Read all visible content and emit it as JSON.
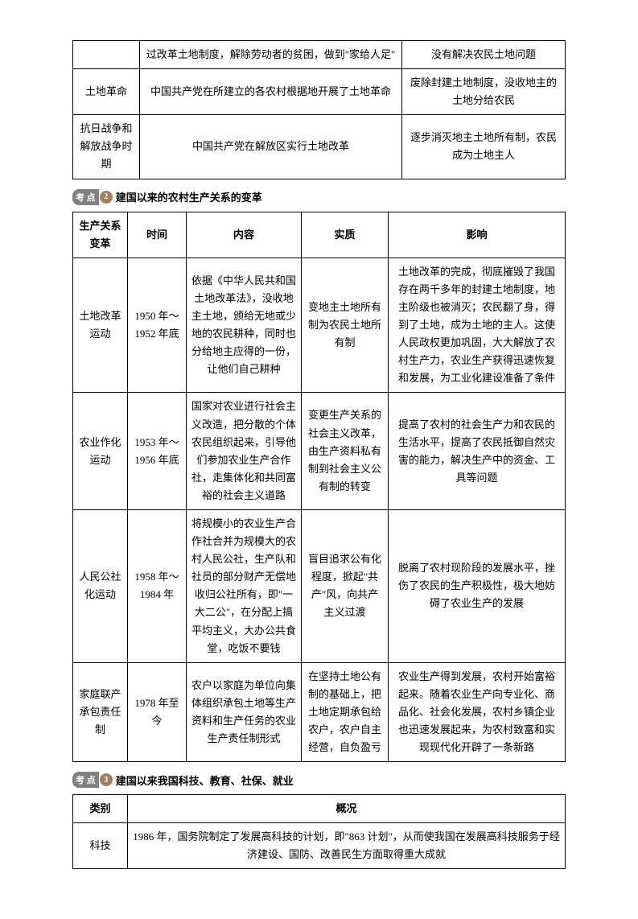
{
  "table1": {
    "rows": [
      {
        "c1": "",
        "c2": "过改革土地制度，解除劳动者的贫困，做到\"家给人足\"",
        "c3": "没有解决农民土地问题"
      },
      {
        "c1": "土地革命",
        "c2": "中国共产党在所建立的各农村根据地开展了土地革命",
        "c3": "废除封建土地制度，没收地主的土地分给农民"
      },
      {
        "c1": "抗日战争和解放战争时期",
        "c2": "中国共产党在解放区实行土地改革",
        "c3": "逐步消灭地主土地所有制，农民成为土地主人"
      }
    ]
  },
  "heading2": {
    "badge": "考 点",
    "num": "2",
    "title": "建国以来的农村生产关系的变革"
  },
  "table2": {
    "head": {
      "h1": "生产关系变革",
      "h2": "时间",
      "h3": "内容",
      "h4": "实质",
      "h5": "影响"
    },
    "rows": [
      {
        "c1": "土地改革运动",
        "c2": "1950 年～1952 年底",
        "c3": "依据《中华人民共和国土地改革法》，没收地主土地，颁给无地或少地的农民耕种，同时也分给地主应得的一份，让他们自己耕种",
        "c4": "变地主土地所有制为农民土地所有制",
        "c5": "土地改革的完成，彻底摧毁了我国存在两千多年的封建土地制度，地主阶级也被消灭；农民翻了身，得到了土地，成为土地的主人。这使人民政权更加巩固，大大解放了农村生产力，农业生产获得迅速恢复和发展，为工业化建设准备了条件"
      },
      {
        "c1": "农业作化运动",
        "c2": "1953 年～1956 年底",
        "c3": "国家对农业进行社会主义改造，把分散的个体农民组织起来，引导他们参加农业生产合作社，走集体化和共同富裕的社会主义道路",
        "c4": "变更生产关系的社会主义改革，由生产资料私有制到社会主义公有制的转变",
        "c5": "提高了农村的社会生产力和农民的生活水平，提高了农民抵御自然灾害的能力，解决生产中的资金、工具等问题"
      },
      {
        "c1": "人民公社化运动",
        "c2": "1958 年～1984 年",
        "c3": "将规模小的农业生产合作社合并为规模大的农村人民公社，生产队和社员的部分财产无偿地收归公社所有，即\"一大二公\"，在分配上搞平均主义，大办公共食堂，吃饭不要钱",
        "c4": "盲目追求公有化程度，掀起\"共产\"风，向共产主义过渡",
        "c5": "脱离了农村现阶段的发展水平，挫伤了农民的生产积极性，极大地妨碍了农业生产的发展"
      },
      {
        "c1": "家庭联产承包责任制",
        "c2": "1978 年至今",
        "c3": "农户以家庭为单位向集体组织承包土地等生产资料和生产任务的农业生产责任制形式",
        "c4": "在坚持土地公有制的基础上，把土地定期承包给农户，农户自主经营，自负盈亏",
        "c5": "农业生产得到发展，农村开始富裕起来。随着农业生产向专业化、商品化、社会化发展，农村乡镇企业也迅速发展起来，为农村致富和实现现代化开辟了一条新路"
      }
    ]
  },
  "heading3": {
    "badge": "考 点",
    "num": "3",
    "title": "建国以来我国科技、教育、社保、就业"
  },
  "table3": {
    "head": {
      "h1": "类别",
      "h2": "概况"
    },
    "rows": [
      {
        "c1": "科技",
        "c2": "1986 年，国务院制定了发展高科技的计划，即\"863 计划\"，从而使我国在发展高科技服务于经济建设、国防、改善民生方面取得重大成就"
      }
    ]
  }
}
